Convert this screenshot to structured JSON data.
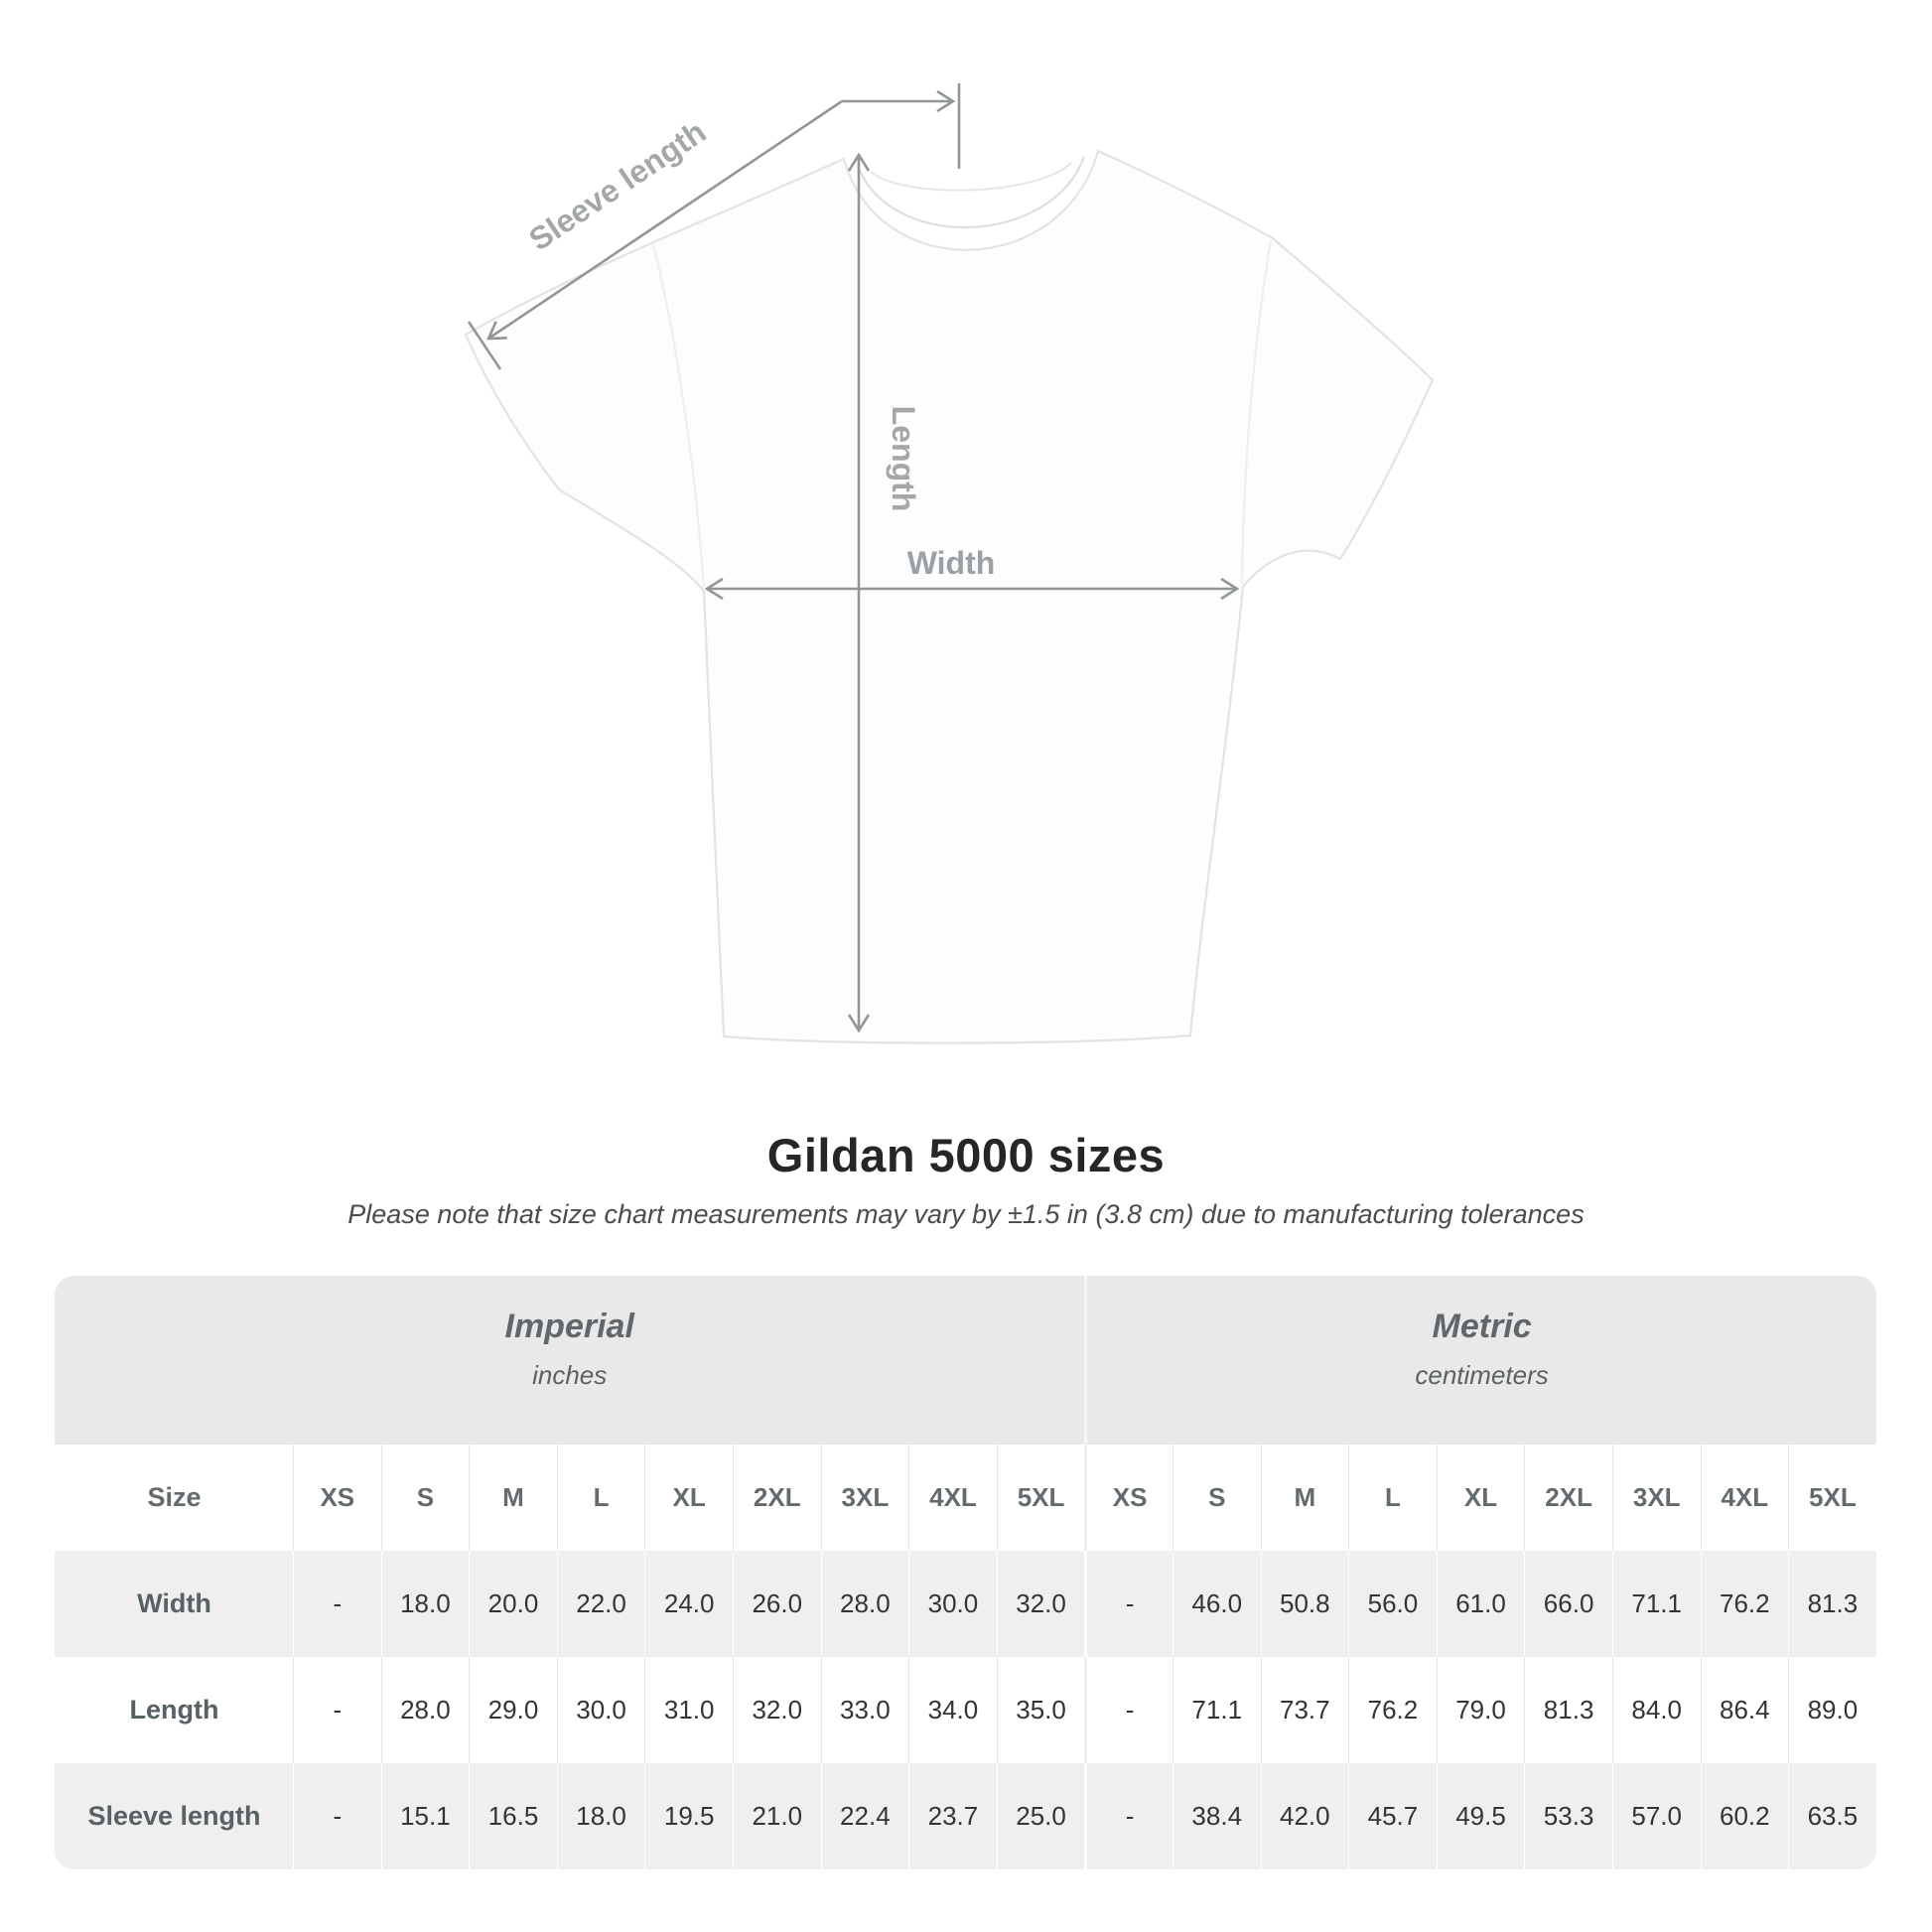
{
  "title": "Gildan 5000 sizes",
  "subtitle": "Please note that size chart measurements may vary by ±1.5 in (3.8 cm) due to manufacturing tolerances",
  "diagram": {
    "sleeve_length_label": "Sleeve length",
    "length_label": "Length",
    "width_label": "Width",
    "line_color": "#919699",
    "label_color": "#a3a7a9",
    "shirt_fill": "#fdfdfd",
    "shirt_outline": "#e3e3e3"
  },
  "chart_data": {
    "type": "table",
    "title": "Gildan 5000 sizes",
    "subtitle": "Please note that size chart measurements may vary by ±1.5 in (3.8 cm) due to manufacturing tolerances",
    "row_header": "Size",
    "column_groups": [
      {
        "name": "Imperial",
        "unit": "inches",
        "sizes": [
          "XS",
          "S",
          "M",
          "L",
          "XL",
          "2XL",
          "3XL",
          "4XL",
          "5XL"
        ]
      },
      {
        "name": "Metric",
        "unit": "centimeters",
        "sizes": [
          "XS",
          "S",
          "M",
          "L",
          "XL",
          "2XL",
          "3XL",
          "4XL",
          "5XL"
        ]
      }
    ],
    "rows": [
      {
        "label": "Width",
        "imperial": [
          "-",
          "18.0",
          "20.0",
          "22.0",
          "24.0",
          "26.0",
          "28.0",
          "30.0",
          "32.0"
        ],
        "metric": [
          "-",
          "46.0",
          "50.8",
          "56.0",
          "61.0",
          "66.0",
          "71.1",
          "76.2",
          "81.3"
        ]
      },
      {
        "label": "Length",
        "imperial": [
          "-",
          "28.0",
          "29.0",
          "30.0",
          "31.0",
          "32.0",
          "33.0",
          "34.0",
          "35.0"
        ],
        "metric": [
          "-",
          "71.1",
          "73.7",
          "76.2",
          "79.0",
          "81.3",
          "84.0",
          "86.4",
          "89.0"
        ]
      },
      {
        "label": "Sleeve length",
        "imperial": [
          "-",
          "15.1",
          "16.5",
          "18.0",
          "19.5",
          "21.0",
          "22.4",
          "23.7",
          "25.0"
        ],
        "metric": [
          "-",
          "38.4",
          "42.0",
          "45.7",
          "49.5",
          "53.3",
          "57.0",
          "60.2",
          "63.5"
        ]
      }
    ]
  },
  "colors": {
    "header_band": "#e9e9e9",
    "alt_row": "#efefef",
    "title_text": "#262626",
    "subtitle_text": "#4c4c4c"
  }
}
